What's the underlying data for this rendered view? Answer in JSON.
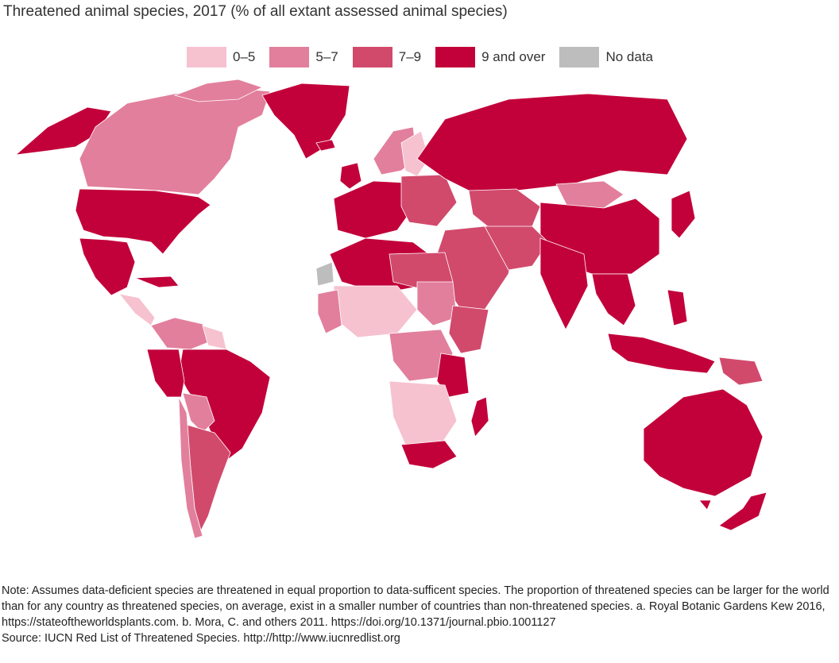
{
  "title": "Threatened animal species, 2017 (% of all extant assessed animal species)",
  "legend": [
    {
      "label": "0–5",
      "color": "#f6c2d0"
    },
    {
      "label": "5–7",
      "color": "#e27f9c"
    },
    {
      "label": "7–9",
      "color": "#d14a6c"
    },
    {
      "label": "9 and over",
      "color": "#c2003a"
    },
    {
      "label": "No data",
      "color": "#bdbdbd"
    }
  ],
  "note": "Note: Assumes data-deficient species are threatened in equal proportion to data-sufficent species. The proportion of threatened species can be larger for the world than for any country as threatened species, on average, exist in a smaller number of countries than non-threatened species. a. Royal Botanic Gardens Kew 2016, https://stateoftheworldsplants.com. b. Mora, C. and others 2011. https://doi.org/10.1371/journal.pbio.1001127",
  "source": "Source: IUCN Red List of Threatened Species. http://http://www.iucnredlist.org"
}
